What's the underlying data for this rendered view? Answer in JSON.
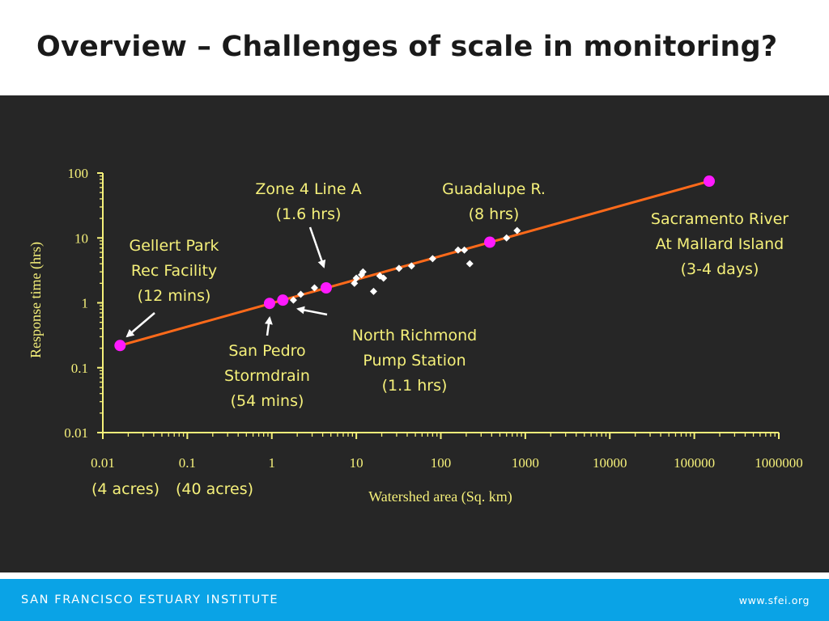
{
  "slide": {
    "title": "Overview – Challenges of scale in monitoring?",
    "footer_left": "SAN FRANCISCO ESTUARY INSTITUTE",
    "footer_right": "www.sfei.org"
  },
  "colors": {
    "panel_bg": "#262626",
    "axis_text": "#f5f07a",
    "fit_line": "#ff6a1a",
    "highlight_points": "#ff1aff",
    "other_points": "#ffffff",
    "footer_bar": "#0aa3e6"
  },
  "chart_data": {
    "type": "scatter",
    "title": "",
    "xlabel": "Watershed area (Sq. km)",
    "ylabel": "Response time (hrs)",
    "x_scale": "log",
    "y_scale": "log",
    "xlim": [
      0.01,
      1000000
    ],
    "ylim": [
      0.01,
      100
    ],
    "x_ticks": [
      "0.01",
      "0.1",
      "1",
      "10",
      "100",
      "1000",
      "10000",
      "100000",
      "1000000"
    ],
    "y_ticks": [
      "100",
      "10",
      "1",
      "0.1",
      "0.01"
    ],
    "x_sublabels": [
      "(4 acres)",
      "(40 acres)"
    ],
    "grid": false,
    "legend": "none",
    "fit_line": {
      "x": [
        0.016,
        150000
      ],
      "y": [
        0.22,
        75
      ]
    },
    "series": [
      {
        "marker": "circle",
        "points": [
          {
            "x": 0.016,
            "y": 0.22
          },
          {
            "x": 0.94,
            "y": 0.98
          },
          {
            "x": 1.35,
            "y": 1.1
          },
          {
            "x": 4.4,
            "y": 1.7
          },
          {
            "x": 380,
            "y": 8.6
          },
          {
            "x": 150000,
            "y": 75
          }
        ]
      },
      {
        "marker": "diamond",
        "points": [
          {
            "x": 1.8,
            "y": 1.1
          },
          {
            "x": 2.2,
            "y": 1.35
          },
          {
            "x": 3.2,
            "y": 1.7
          },
          {
            "x": 9.5,
            "y": 2.0
          },
          {
            "x": 10,
            "y": 2.4
          },
          {
            "x": 11.5,
            "y": 2.7
          },
          {
            "x": 12,
            "y": 3.0
          },
          {
            "x": 16,
            "y": 1.5
          },
          {
            "x": 19,
            "y": 2.6
          },
          {
            "x": 21,
            "y": 2.4
          },
          {
            "x": 32,
            "y": 3.4
          },
          {
            "x": 45,
            "y": 3.7
          },
          {
            "x": 80,
            "y": 4.8
          },
          {
            "x": 160,
            "y": 6.5
          },
          {
            "x": 190,
            "y": 6.5
          },
          {
            "x": 220,
            "y": 4.0
          },
          {
            "x": 600,
            "y": 10
          },
          {
            "x": 800,
            "y": 13
          }
        ]
      }
    ],
    "annotations": [
      {
        "lines": [
          "Gellert Park",
          "Rec Facility",
          "(12 mins)"
        ]
      },
      {
        "lines": [
          "Zone 4 Line A",
          "(1.6 hrs)"
        ]
      },
      {
        "lines": [
          "Guadalupe R.",
          "(8 hrs)"
        ]
      },
      {
        "lines": [
          "Sacramento River",
          "At Mallard Island",
          "(3-4 days)"
        ]
      },
      {
        "lines": [
          "San Pedro",
          "Stormdrain",
          "(54 mins)"
        ]
      },
      {
        "lines": [
          "North Richmond",
          "Pump Station",
          "(1.1 hrs)"
        ]
      }
    ]
  }
}
